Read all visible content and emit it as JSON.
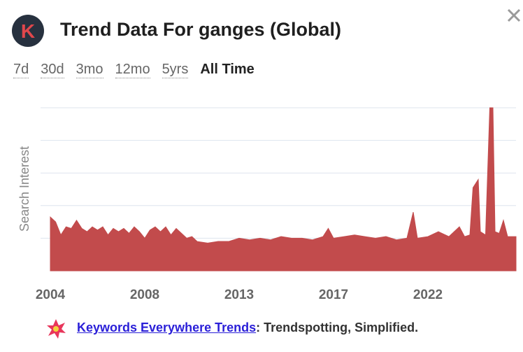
{
  "header": {
    "title": "Trend Data For ganges (Global)"
  },
  "tabs": {
    "items": [
      "7d",
      "30d",
      "3mo",
      "12mo",
      "5yrs",
      "All Time"
    ],
    "active_index": 5
  },
  "chart_data": {
    "type": "area",
    "y_label": "Search Interest",
    "x": [
      2004.0,
      2004.25,
      2004.5,
      2004.75,
      2005.0,
      2005.25,
      2005.5,
      2005.75,
      2006.0,
      2006.25,
      2006.5,
      2006.75,
      2007.0,
      2007.25,
      2007.5,
      2007.75,
      2008.0,
      2008.25,
      2008.5,
      2008.75,
      2009.0,
      2009.25,
      2009.5,
      2009.75,
      2010.0,
      2010.25,
      2010.5,
      2010.75,
      2011.0,
      2011.5,
      2012.0,
      2012.5,
      2013.0,
      2013.5,
      2014.0,
      2014.5,
      2015.0,
      2015.5,
      2016.0,
      2016.5,
      2017.0,
      2017.25,
      2017.5,
      2018.0,
      2018.5,
      2019.0,
      2019.5,
      2020.0,
      2020.5,
      2021.0,
      2021.3,
      2021.5,
      2022.0,
      2022.5,
      2023.0,
      2023.5,
      2023.75,
      2024.0,
      2024.15,
      2024.4,
      2024.5,
      2024.75,
      2024.95,
      2025.1,
      2025.2,
      2025.4,
      2025.6,
      2025.8,
      2026.2
    ],
    "series": [
      {
        "color": "#c24b4c",
        "values": [
          33,
          30,
          22,
          27,
          26,
          31,
          26,
          24,
          27,
          25,
          27,
          22,
          26,
          24,
          26,
          23,
          27,
          24,
          20,
          25,
          27,
          24,
          27,
          22,
          26,
          23,
          20,
          21,
          18,
          17,
          18,
          18,
          20,
          19,
          20,
          19,
          21,
          20,
          20,
          19,
          21,
          26,
          20,
          21,
          22,
          21,
          20,
          21,
          19,
          20,
          36,
          20,
          21,
          24,
          21,
          27,
          21,
          22,
          51,
          56,
          24,
          22,
          100,
          100,
          24,
          23,
          31,
          21,
          21
        ]
      }
    ],
    "xlim": [
      2004,
      2026.2
    ],
    "xticks": [
      {
        "value": 2004,
        "label": "2004"
      },
      {
        "value": 2008.5,
        "label": "2008"
      },
      {
        "value": 2013,
        "label": "2013"
      },
      {
        "value": 2017.5,
        "label": "2017"
      },
      {
        "value": 2022,
        "label": "2022"
      }
    ],
    "ylim": [
      0,
      100
    ],
    "yticks": [
      20,
      40,
      60,
      80,
      100
    ],
    "grid": true
  },
  "footer": {
    "link": "Keywords Everywhere Trends",
    "tagline": ": Trendspotting, Simplified."
  }
}
